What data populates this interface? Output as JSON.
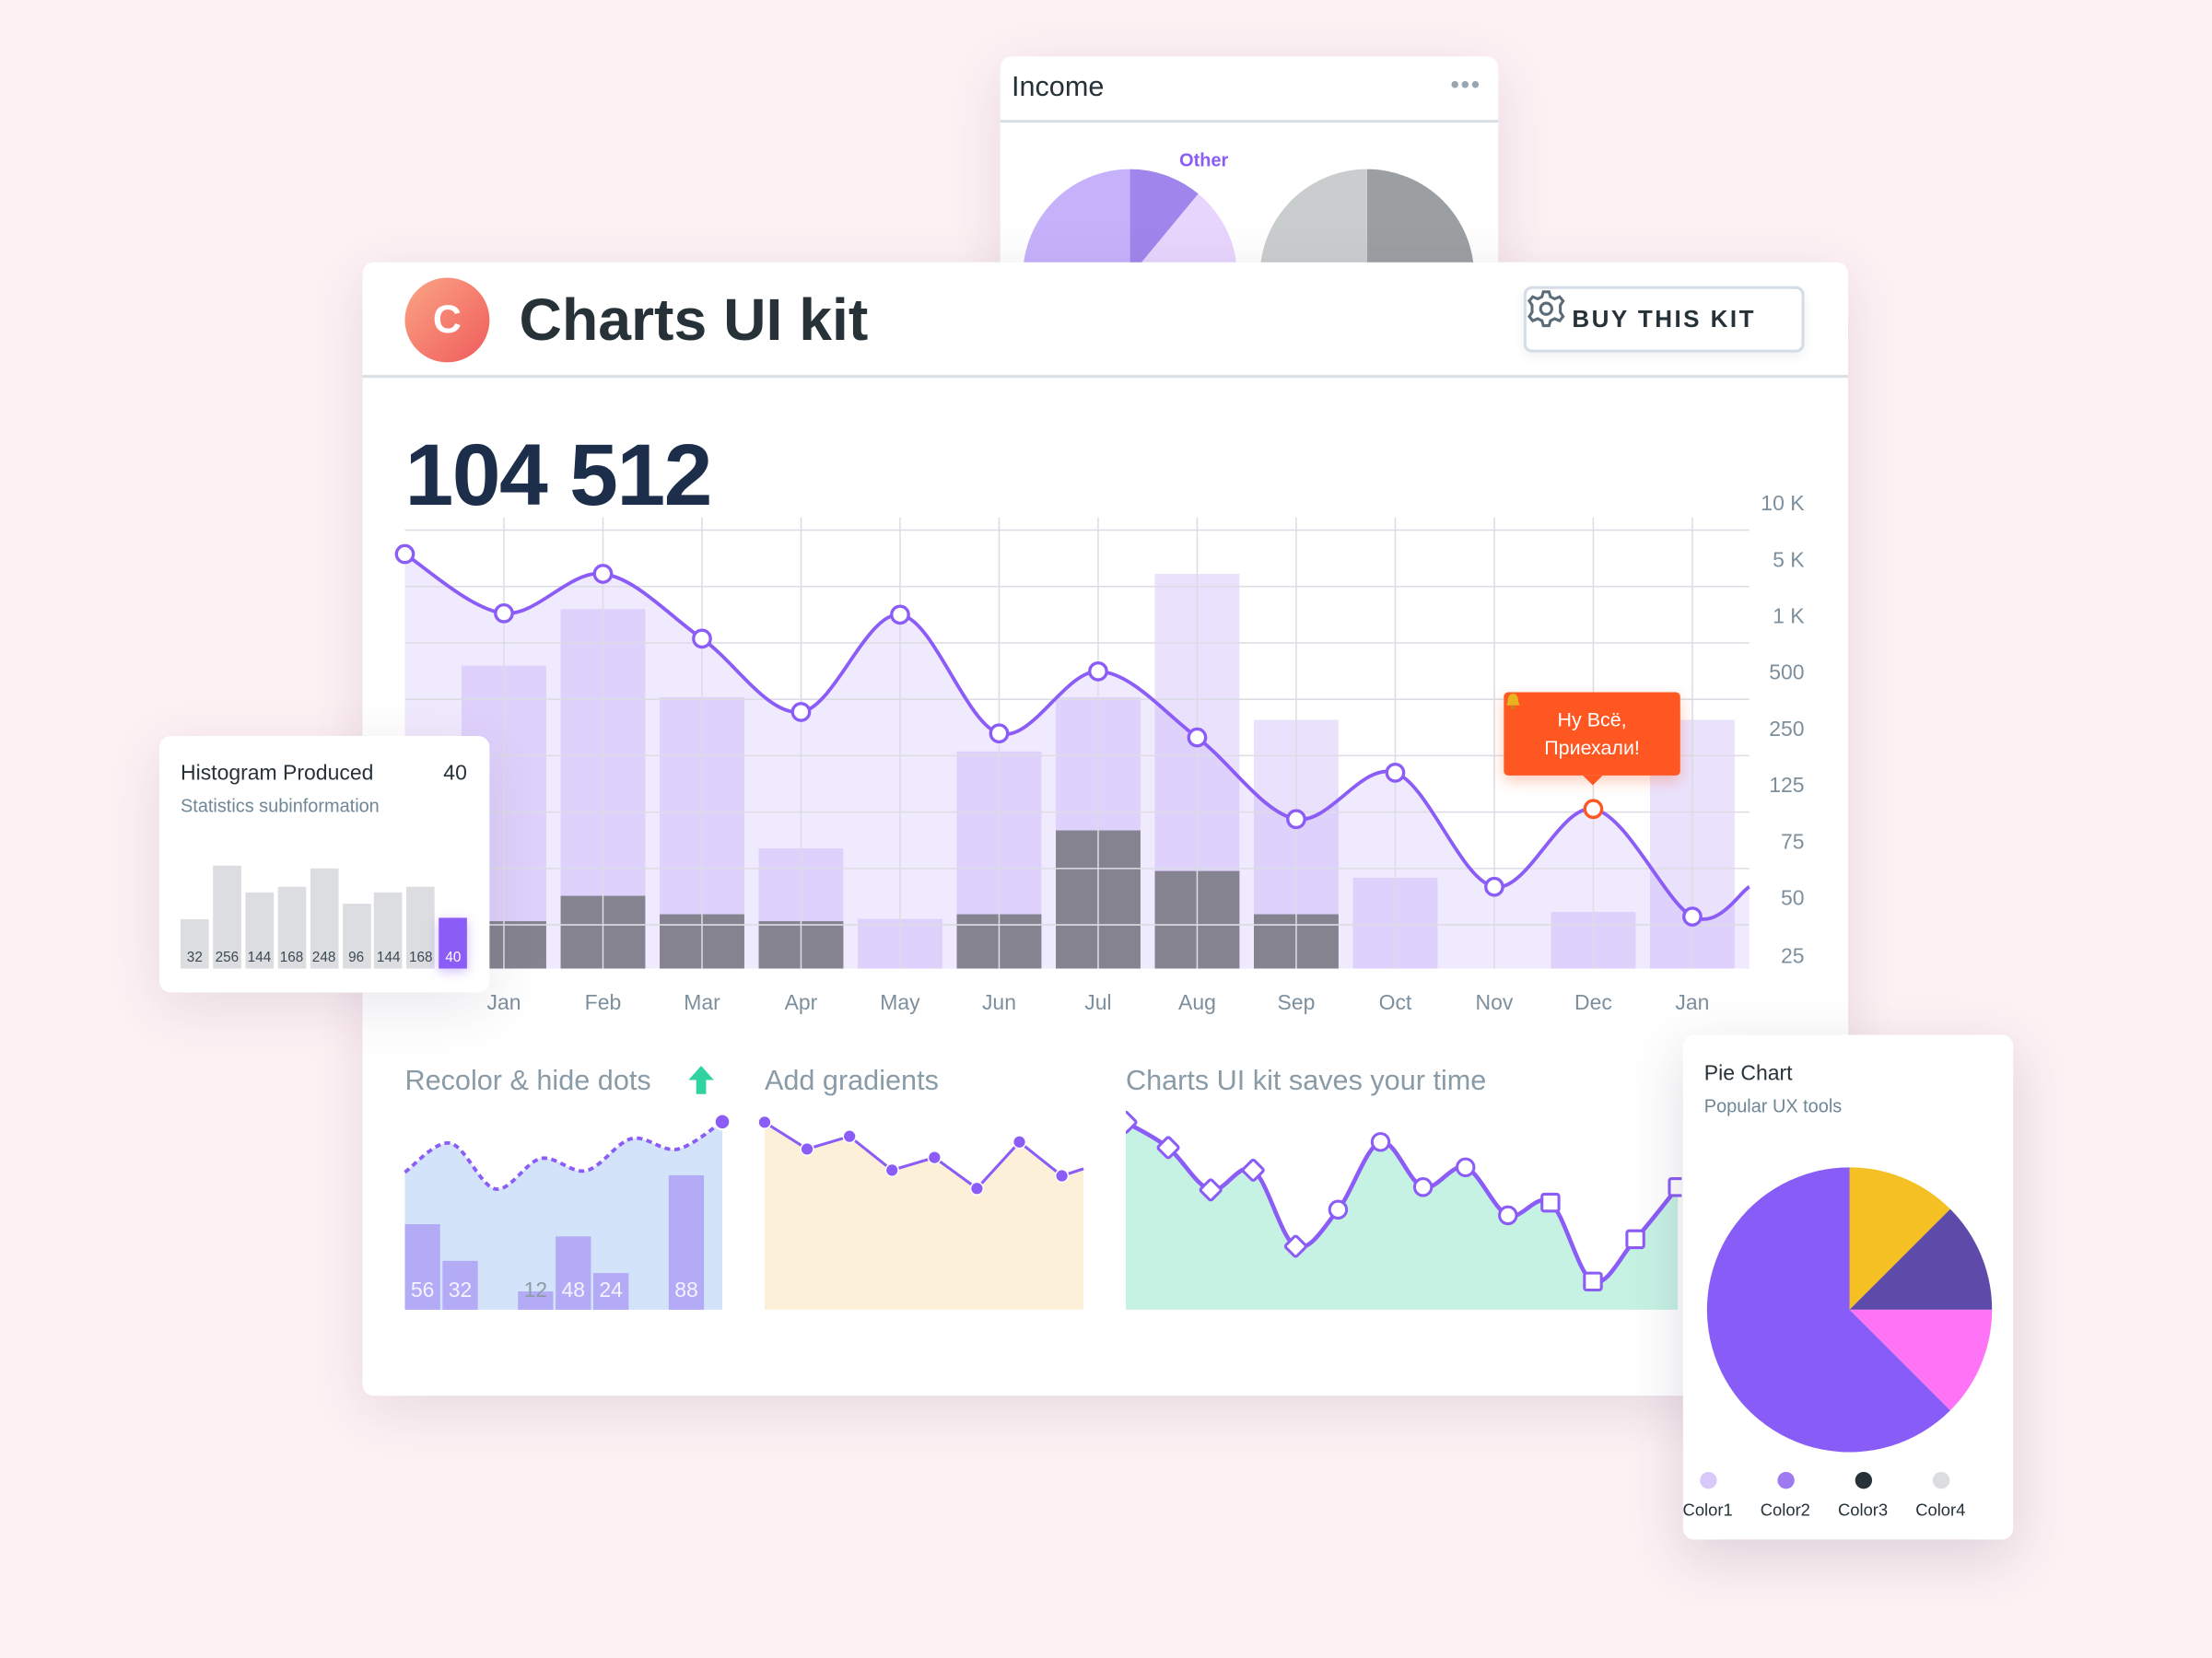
{
  "income_card": {
    "title": "Income",
    "menu_icon": "more-dots-icon",
    "pie_label": "Other"
  },
  "header": {
    "logo_letter": "C",
    "title": "Charts UI kit",
    "buy_button": "BUY THIS KIT",
    "buy_icon": "gear-icon"
  },
  "main": {
    "total": "104 512"
  },
  "tooltip": {
    "icon": "bell-icon",
    "line1": "Ну Всё,",
    "line2": "Приехали!",
    "color": "#ff5722"
  },
  "chart_data": [
    {
      "type": "bar+line",
      "categories": [
        "Jan",
        "Feb",
        "Mar",
        "Apr",
        "May",
        "Jun",
        "Jul",
        "Aug",
        "Sep",
        "Oct",
        "Nov",
        "Dec",
        "Jan"
      ],
      "y_tick_labels": [
        "10 K",
        "5 K",
        "1 K",
        "500",
        "250",
        "125",
        "75",
        "50",
        "25"
      ],
      "y_tick_values": [
        10000,
        5000,
        1000,
        500,
        250,
        125,
        75,
        50,
        25
      ],
      "light_bars": [
        560,
        1500,
        390,
        72,
        41,
        200,
        390,
        4000,
        290,
        59,
        0,
        44,
        290
      ],
      "dark_bars": [
        40,
        51,
        43,
        40,
        0,
        43,
        85,
        62,
        43,
        0,
        0,
        0,
        0
      ],
      "line_start_value": 5500,
      "line": [
        1200,
        4000,
        800,
        325,
        1100,
        240,
        510,
        231,
        95,
        153,
        55,
        104,
        42
      ],
      "line_end_value": 55,
      "highlighted_index": 11,
      "grid": true,
      "colors": {
        "line": "#8b5cf6",
        "light_bar": "#d6c8f7",
        "dark_bar": "#85838f",
        "highlight": "#ff5722"
      }
    },
    {
      "type": "bar",
      "title": "Histogram Produced",
      "value": "40",
      "subtitle": "Statistics subinformation",
      "values": [
        32,
        256,
        144,
        168,
        248,
        96,
        144,
        168,
        40
      ],
      "selected_index": 8,
      "colors": {
        "bar": "#dcdde0",
        "selected": "#8b5cf6"
      }
    },
    {
      "type": "bar+line",
      "title": "Recolor & hide dots",
      "title_icon": "arrow-up-icon",
      "bars": [
        56,
        32,
        null,
        12,
        48,
        24,
        null,
        88
      ],
      "line": [
        90,
        109,
        79,
        99,
        91,
        112,
        105,
        123
      ],
      "colors": {
        "area": "#d3e3fa",
        "bar": "#b3abf6",
        "line": "#8b5cf6",
        "icon": "#2ed3a0"
      }
    },
    {
      "type": "area",
      "title": "Add gradients",
      "values": [
        133,
        114,
        123,
        99,
        108,
        86,
        119,
        95,
        100
      ],
      "colors": {
        "area": "#fdf0d8",
        "line": "#8b5cf6"
      }
    },
    {
      "type": "area",
      "title": "Charts UI kit saves your time",
      "values": [
        133,
        115,
        85,
        99,
        45,
        71,
        119,
        87,
        101,
        67,
        76,
        20,
        50,
        87
      ],
      "markers": [
        "diamond",
        "diamond",
        "diamond",
        "diamond",
        "diamond",
        "circle",
        "circle",
        "circle",
        "circle",
        "circle",
        "square",
        "square",
        "square",
        "square"
      ],
      "colors": {
        "area": "#c6f2e4",
        "line": "#8b5cf6"
      }
    },
    {
      "type": "pie",
      "title": "Pie Chart",
      "subtitle": "Popular UX tools",
      "slices": [
        {
          "value": 12.5,
          "color": "#f4c024"
        },
        {
          "value": 12.5,
          "color": "#5e4aa8"
        },
        {
          "value": 12.5,
          "color": "#ff73f7"
        },
        {
          "value": 62.5,
          "color": "#885cf6"
        }
      ],
      "legend": [
        {
          "label": "Color1",
          "color": "#d9c9fa"
        },
        {
          "label": "Color2",
          "color": "#9d7af0"
        },
        {
          "label": "Color3",
          "color": "#263238"
        },
        {
          "label": "Color4",
          "color": "#dcdde0"
        }
      ]
    },
    {
      "type": "pie",
      "label": "Other",
      "pies": [
        [
          {
            "value": 11,
            "color": "#a086ec"
          },
          {
            "value": 39,
            "color": "#e8d5fd"
          },
          {
            "value": 50,
            "color": "#c6b2fb"
          }
        ],
        [
          {
            "value": 50,
            "color": "#9c9fa2"
          },
          {
            "value": 50,
            "color": "#cacdce"
          }
        ]
      ]
    }
  ]
}
